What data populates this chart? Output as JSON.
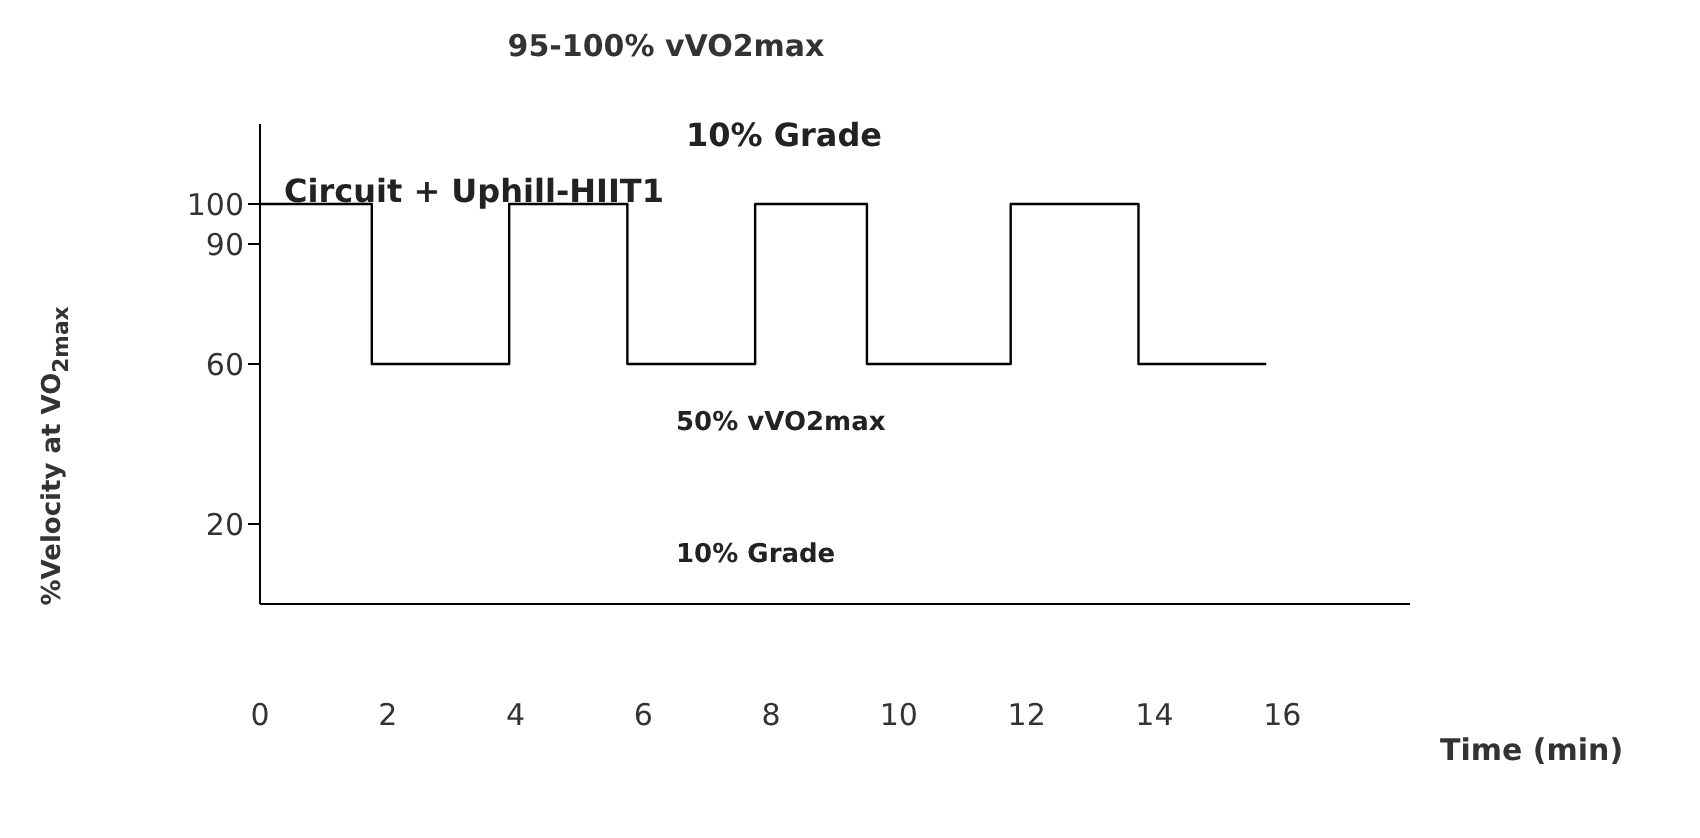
{
  "chart_data": {
    "type": "step",
    "title": "95-100% vVO2max",
    "ylabel": "%Velocity at VO$_{2max}$",
    "xlabel": "Time (min)",
    "annotations": [
      "10% Grade",
      "Circuit + Uphill-HIIT1",
      "50% vVO2max",
      "10% Grade"
    ],
    "x": [
      0,
      1.75,
      3.9,
      5.75,
      7.75,
      9.5,
      11.75,
      13.75,
      15.75
    ],
    "series": [
      {
        "color": "#000000",
        "values": [
          100,
          60,
          100,
          60,
          100,
          60,
          100,
          60,
          60
        ]
      }
    ],
    "xlim": [
      0,
      18
    ],
    "xticks": [
      0,
      2,
      4,
      6,
      8,
      10,
      12,
      14,
      16
    ],
    "ylim": [
      0,
      120
    ],
    "yticks": [
      20,
      60,
      90,
      100
    ],
    "grid": false,
    "marker": "none",
    "line_style": "solid"
  }
}
